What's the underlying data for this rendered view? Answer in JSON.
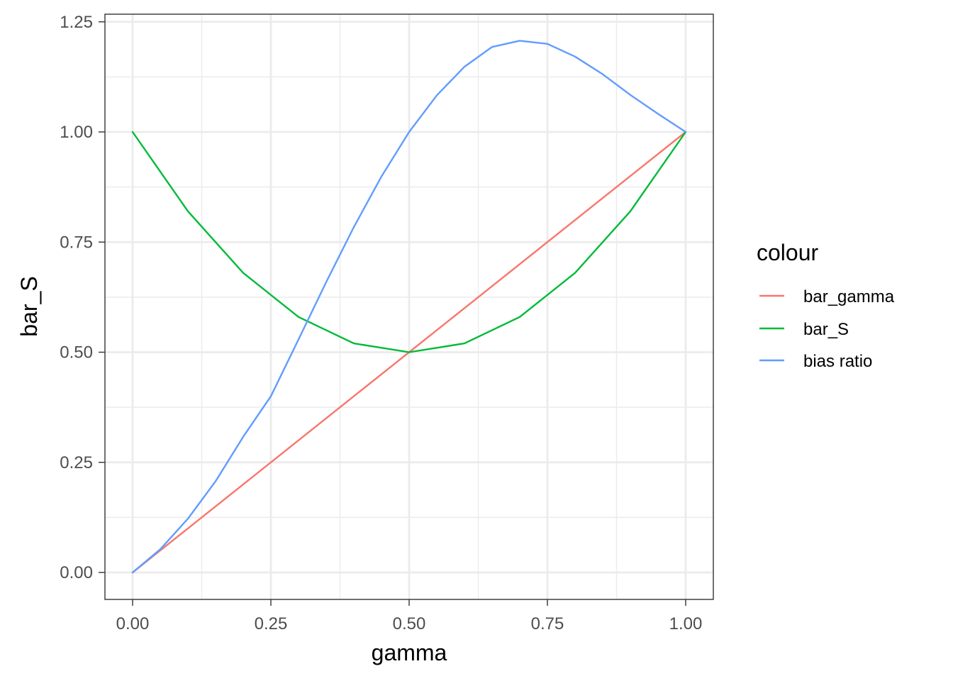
{
  "chart_data": {
    "type": "line",
    "xlabel": "gamma",
    "ylabel": "bar_S",
    "xlim": [
      0,
      1
    ],
    "ylim": [
      0,
      1.25
    ],
    "x_ticks": [
      "0.00",
      "0.25",
      "0.50",
      "0.75",
      "1.00"
    ],
    "y_ticks": [
      "0.00",
      "0.25",
      "0.50",
      "0.75",
      "1.00",
      "1.25"
    ],
    "grid": true,
    "legend": {
      "title": "colour",
      "position": "right"
    },
    "series": [
      {
        "name": "bar_gamma",
        "color": "#F8766D",
        "x": [
          0,
          0.1,
          0.2,
          0.3,
          0.4,
          0.5,
          0.6,
          0.7,
          0.8,
          0.9,
          1.0
        ],
        "y": [
          0,
          0.1,
          0.2,
          0.3,
          0.4,
          0.5,
          0.6,
          0.7,
          0.8,
          0.9,
          1.0
        ]
      },
      {
        "name": "bar_S",
        "color": "#00BA38",
        "x": [
          0,
          0.1,
          0.2,
          0.3,
          0.4,
          0.5,
          0.6,
          0.7,
          0.8,
          0.9,
          1.0
        ],
        "y": [
          1.0,
          0.82,
          0.68,
          0.58,
          0.52,
          0.5,
          0.52,
          0.58,
          0.68,
          0.82,
          1.0
        ]
      },
      {
        "name": "bias ratio",
        "color": "#619CFF",
        "x": [
          0,
          0.05,
          0.1,
          0.15,
          0.2,
          0.25,
          0.3,
          0.35,
          0.4,
          0.45,
          0.5,
          0.55,
          0.6,
          0.65,
          0.7,
          0.75,
          0.8,
          0.85,
          0.9,
          0.95,
          1.0
        ],
        "y": [
          0,
          0.0526,
          0.122,
          0.207,
          0.308,
          0.4,
          0.529,
          0.659,
          0.784,
          0.899,
          1.0,
          1.083,
          1.148,
          1.193,
          1.207,
          1.2,
          1.171,
          1.131,
          1.084,
          1.041,
          1.0
        ]
      }
    ]
  }
}
